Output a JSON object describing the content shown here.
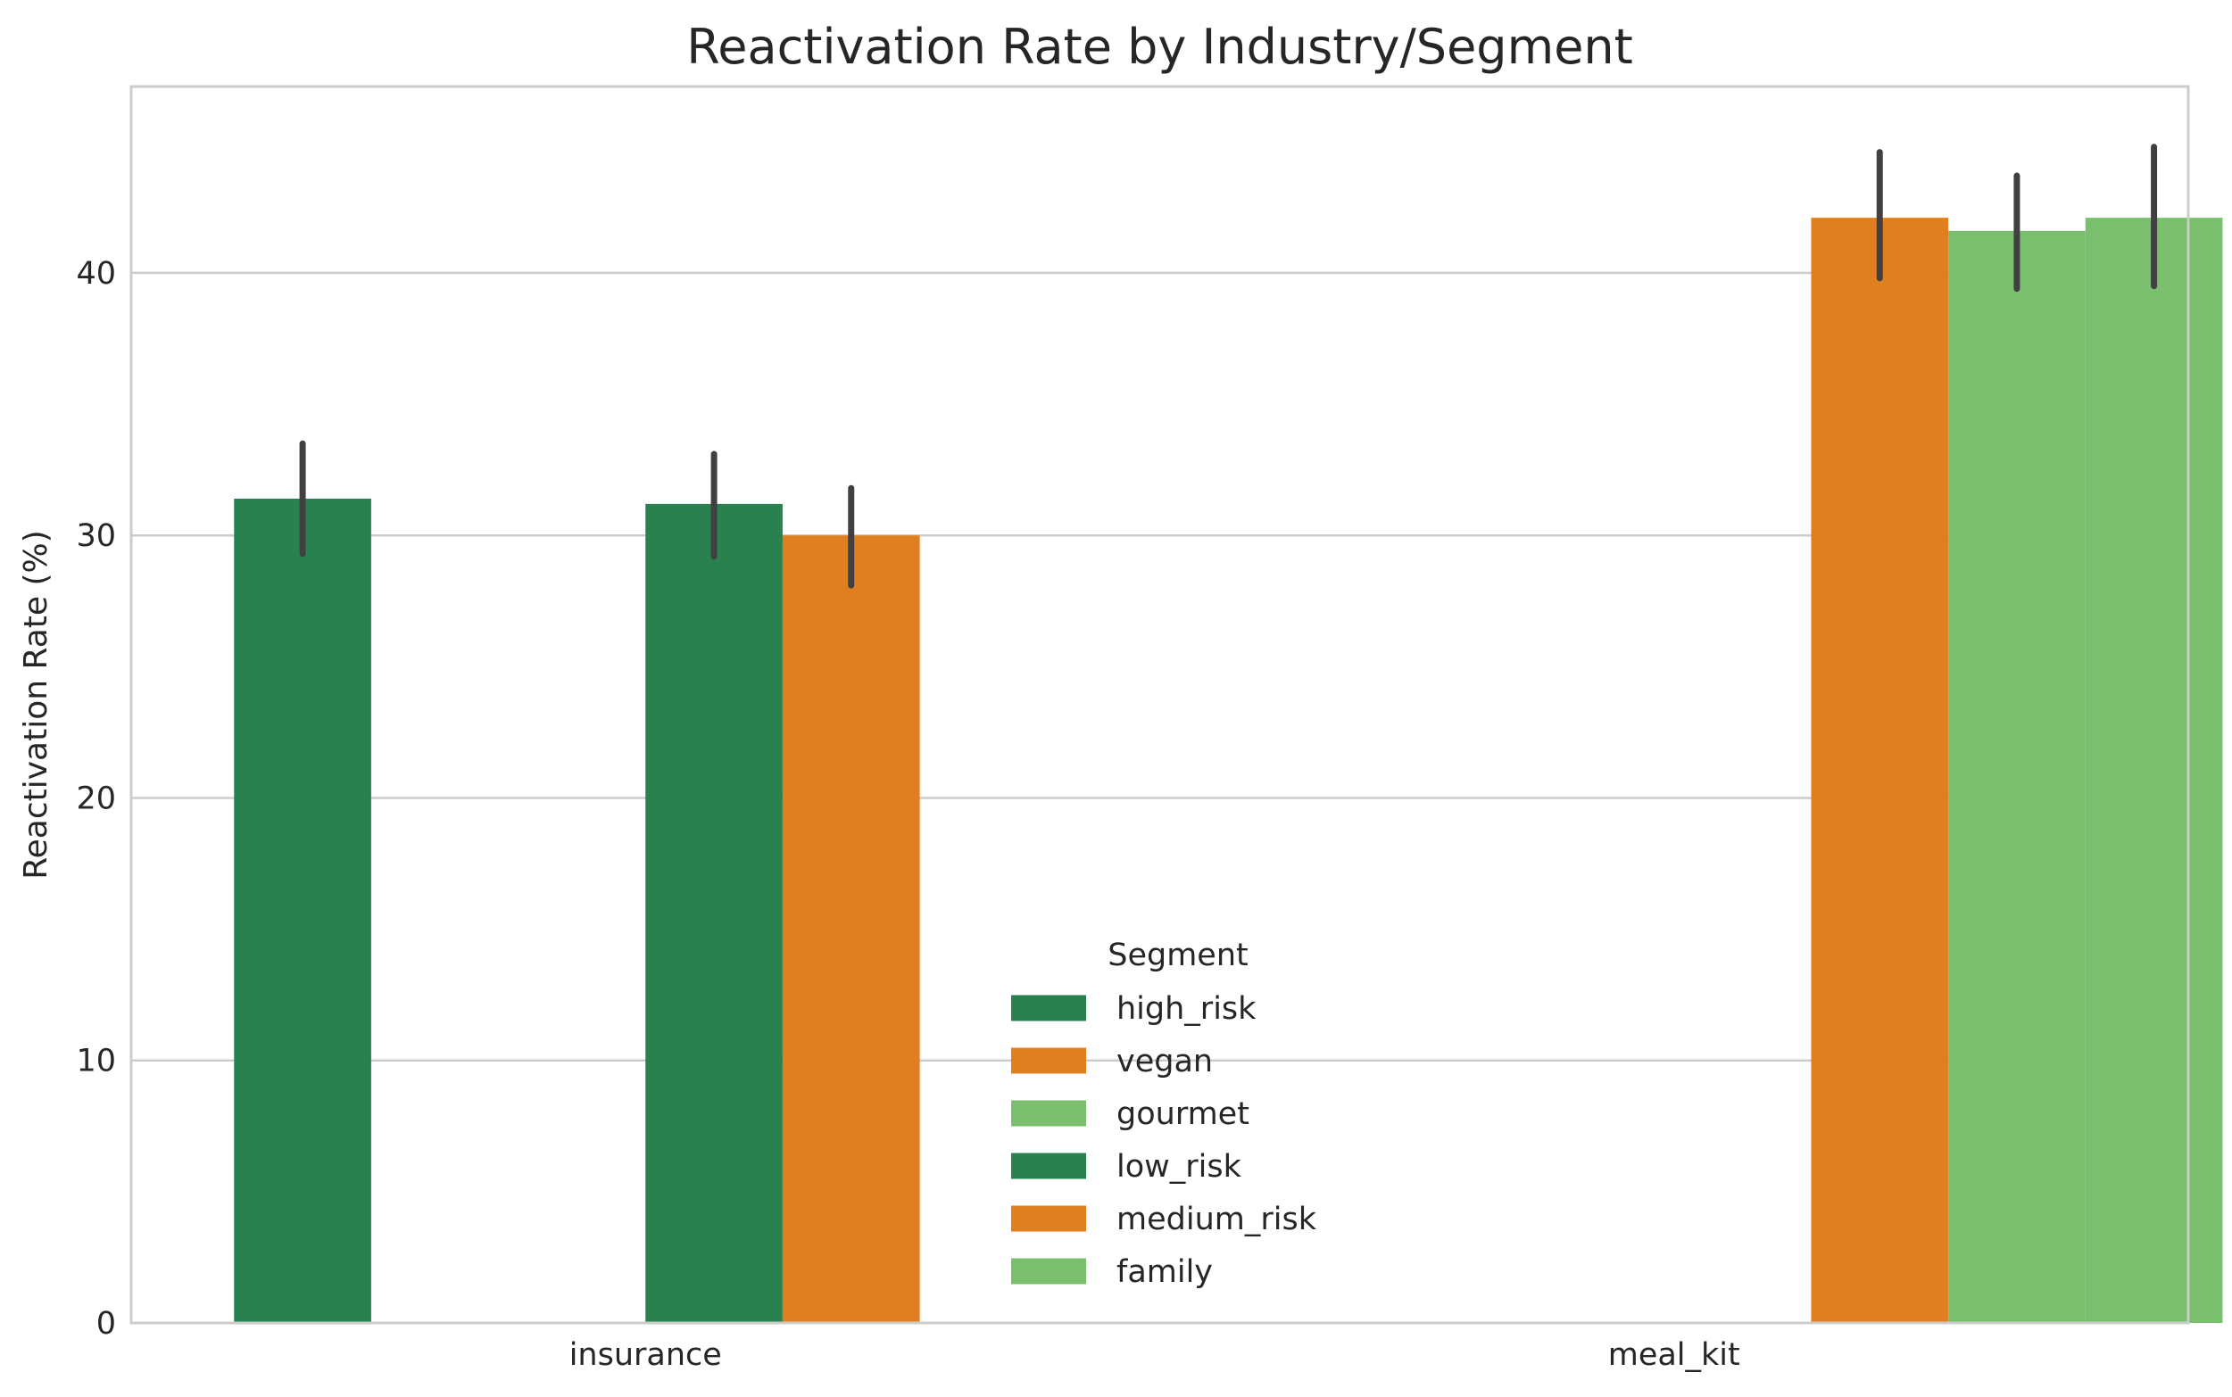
{
  "chart_data": {
    "type": "bar",
    "title": "Reactivation Rate by Industry/Segment",
    "xlabel": "",
    "ylabel": "Reactivation Rate (%)",
    "ylim": [
      0,
      47.1
    ],
    "yticks": [
      0,
      10,
      20,
      30,
      40
    ],
    "grid": "horizontal",
    "categories": [
      "insurance",
      "meal_kit"
    ],
    "legend": {
      "title": "Segment",
      "placement": "lower-center",
      "entries": [
        {
          "label": "high_risk",
          "color": "#2a8150"
        },
        {
          "label": "vegan",
          "color": "#e07f20"
        },
        {
          "label": "gourmet",
          "color": "#79bf6e"
        },
        {
          "label": "low_risk",
          "color": "#2a8150"
        },
        {
          "label": "medium_risk",
          "color": "#e07f20"
        },
        {
          "label": "family",
          "color": "#79bf6e"
        }
      ]
    },
    "series": [
      {
        "name": "high_risk",
        "color": "#2a8150",
        "values": [
          31.4,
          null
        ],
        "ci_low": [
          29.3,
          null
        ],
        "ci_high": [
          33.5,
          null
        ]
      },
      {
        "name": "vegan",
        "color": "#e07f20",
        "values": [
          null,
          null
        ],
        "ci_low": [
          null,
          null
        ],
        "ci_high": [
          null,
          null
        ]
      },
      {
        "name": "gourmet",
        "color": "#79bf6e",
        "values": [
          null,
          null
        ],
        "ci_low": [
          null,
          null
        ],
        "ci_high": [
          null,
          null
        ]
      },
      {
        "name": "low_risk",
        "color": "#2a8150",
        "values": [
          31.2,
          null
        ],
        "ci_low": [
          29.2,
          null
        ],
        "ci_high": [
          33.1,
          null
        ]
      },
      {
        "name": "medium_risk",
        "color": "#e07f20",
        "values": [
          30.0,
          42.1
        ],
        "ci_low": [
          28.1,
          39.8
        ],
        "ci_high": [
          31.8,
          44.6
        ]
      },
      {
        "name": "family",
        "color": "#79bf6e",
        "values": [
          null,
          41.6
        ],
        "ci_low": [
          null,
          39.4
        ],
        "ci_high": [
          null,
          43.7
        ]
      }
    ],
    "extra_bars": [
      {
        "category": "meal_kit",
        "segment": "gourmet",
        "color": "#79bf6e",
        "value": 42.1,
        "ci_low": 39.5,
        "ci_high": 44.8
      }
    ],
    "colors": {
      "grid": "#cccccc",
      "axes": "#cccccc",
      "errorbar": "#404040",
      "text": "#262626"
    }
  }
}
